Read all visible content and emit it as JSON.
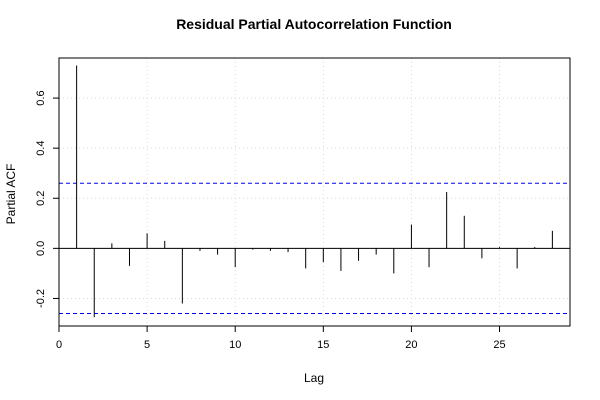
{
  "chart_data": {
    "type": "bar",
    "title": "Residual Partial Autocorrelation Function",
    "xlabel": "Lag",
    "ylabel": "Partial ACF",
    "xlim": [
      0,
      29
    ],
    "ylim": [
      -0.31,
      0.76
    ],
    "x_ticks": [
      0,
      5,
      10,
      15,
      20,
      25
    ],
    "x_tick_labels": [
      "0",
      "5",
      "10",
      "15",
      "20",
      "25"
    ],
    "y_ticks": [
      -0.2,
      0.0,
      0.2,
      0.4,
      0.6
    ],
    "y_tick_labels": [
      "-0.2",
      "0.0",
      "0.2",
      "0.4",
      "0.6"
    ],
    "grid": true,
    "confidence_bounds": [
      0.26,
      -0.26
    ],
    "colors": {
      "bars": "#000000",
      "bounds": "#0000ff",
      "grid": "#d8d8d8",
      "frame": "#000000"
    },
    "series": [
      {
        "lags": [
          1,
          2,
          3,
          4,
          5,
          6,
          7,
          8,
          9,
          10,
          11,
          12,
          13,
          14,
          15,
          16,
          17,
          18,
          19,
          20,
          21,
          22,
          23,
          24,
          25,
          26,
          27,
          28
        ],
        "values": [
          0.73,
          -0.275,
          0.02,
          -0.07,
          0.06,
          0.03,
          -0.22,
          -0.01,
          -0.025,
          -0.075,
          -0.005,
          -0.01,
          -0.015,
          -0.08,
          -0.055,
          -0.09,
          -0.05,
          -0.025,
          -0.1,
          0.095,
          -0.075,
          0.225,
          0.13,
          -0.04,
          0.005,
          -0.08,
          0.005,
          0.07
        ]
      }
    ]
  }
}
